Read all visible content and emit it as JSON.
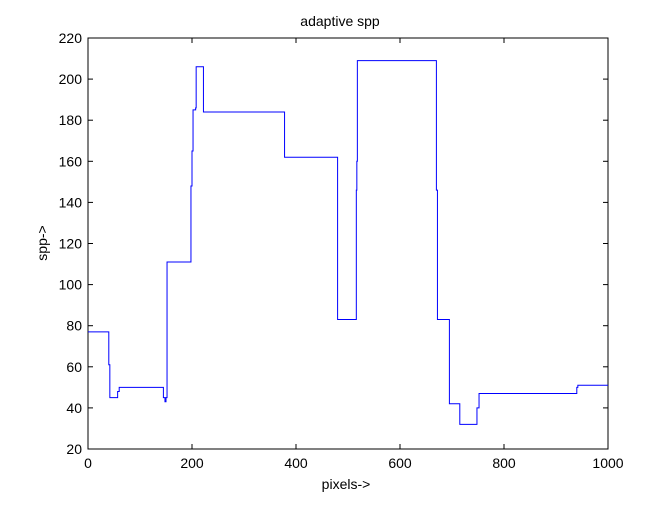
{
  "chart_data": {
    "type": "line",
    "title": "adaptive spp",
    "xlabel": "pixels->",
    "ylabel": "spp->",
    "xlim": [
      0,
      1000
    ],
    "ylim": [
      20,
      220
    ],
    "xticks": [
      0,
      200,
      400,
      600,
      800,
      1000
    ],
    "yticks": [
      20,
      40,
      60,
      80,
      100,
      120,
      140,
      160,
      180,
      200,
      220
    ],
    "grid": false,
    "legend": "none",
    "line_color": "#0000ff",
    "step": true,
    "series": [
      {
        "x": [
          0,
          40,
          40,
          42,
          42,
          57,
          57,
          60,
          60,
          145,
          145,
          148,
          148,
          150,
          150,
          152,
          152,
          198,
          198,
          200,
          200,
          202,
          202,
          207,
          207,
          208,
          208,
          222,
          222,
          378,
          378,
          380,
          380,
          480,
          480,
          516,
          516,
          517,
          517,
          518,
          518,
          670,
          670,
          672,
          672,
          675,
          675,
          695,
          695,
          715,
          715,
          748,
          748,
          752,
          752,
          940,
          940,
          942,
          942,
          1000
        ],
        "y": [
          77,
          77,
          61,
          61,
          45,
          45,
          48,
          48,
          50,
          50,
          45,
          45,
          43,
          43,
          45,
          45,
          111,
          111,
          148,
          148,
          165,
          165,
          185,
          185,
          186,
          186,
          206,
          206,
          184,
          184,
          162,
          162,
          162,
          162,
          83,
          83,
          146,
          146,
          160,
          160,
          209,
          209,
          146,
          146,
          83,
          83,
          83,
          83,
          42,
          42,
          32,
          32,
          40,
          40,
          47,
          47,
          50,
          50,
          51,
          51
        ]
      }
    ]
  }
}
